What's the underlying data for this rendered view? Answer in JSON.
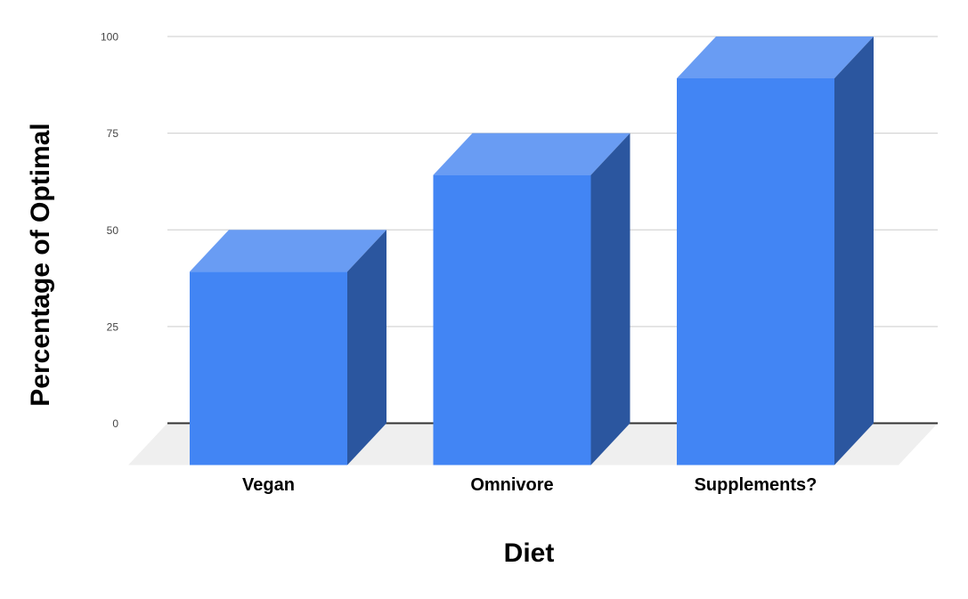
{
  "chart_data": {
    "type": "bar",
    "variant": "3d-column",
    "title": "",
    "xlabel": "Diet",
    "ylabel": "Percentage of Optimal",
    "categories": [
      "Vegan",
      "Omnivore",
      "Supplements?"
    ],
    "values": [
      50,
      75,
      100
    ],
    "series": [
      {
        "name": "Percentage of Optimal",
        "values": [
          50,
          75,
          100
        ]
      }
    ],
    "ylim": [
      0,
      100
    ],
    "yticks": [
      0,
      25,
      50,
      75,
      100
    ],
    "grid": true,
    "legend_position": "none",
    "colors": {
      "bar_front": "#4285F4",
      "bar_top": "#699CF3",
      "bar_side": "#2B569F",
      "floor": "#EFEFEF",
      "gridline": "#D5D5D5",
      "axis_line": "#333333",
      "tick_label": "#444444",
      "category_label": "#000000",
      "axis_title": "#000000",
      "background": "#FFFFFF"
    }
  }
}
